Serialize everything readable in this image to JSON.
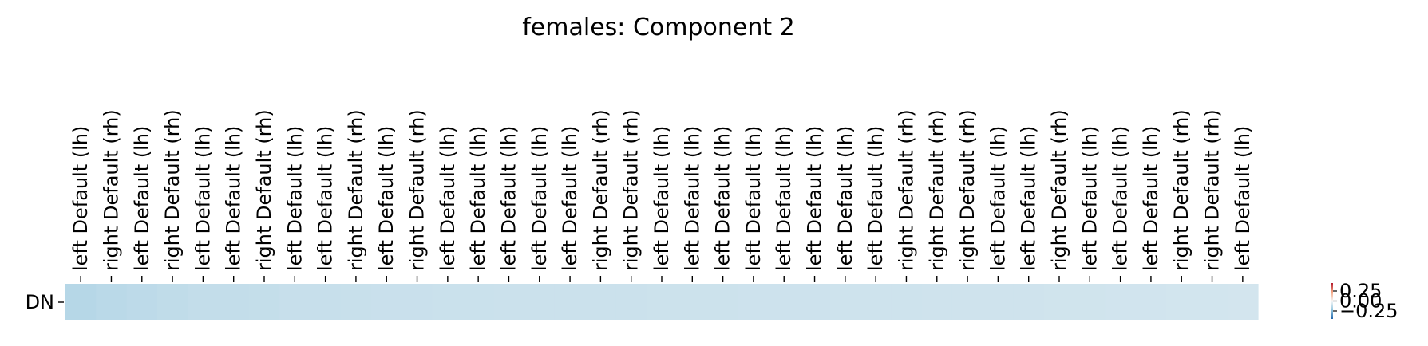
{
  "chart_data": {
    "type": "heatmap",
    "title": "females: Component 2",
    "rows": [
      "DN"
    ],
    "columns": [
      "left Default (lh)",
      "right Default (rh)",
      "left Default (lh)",
      "right Default (rh)",
      "left Default (lh)",
      "left Default (lh)",
      "right Default (rh)",
      "left Default (lh)",
      "left Default (lh)",
      "right Default (rh)",
      "left Default (lh)",
      "right Default (rh)",
      "left Default (lh)",
      "left Default (lh)",
      "left Default (lh)",
      "left Default (lh)",
      "left Default (lh)",
      "right Default (rh)",
      "right Default (rh)",
      "left Default (lh)",
      "left Default (lh)",
      "left Default (lh)",
      "left Default (lh)",
      "left Default (lh)",
      "left Default (lh)",
      "left Default (lh)",
      "left Default (lh)",
      "right Default (rh)",
      "right Default (rh)",
      "right Default (rh)",
      "left Default (lh)",
      "left Default (lh)",
      "right Default (rh)",
      "left Default (lh)",
      "left Default (lh)",
      "left Default (lh)",
      "right Default (rh)",
      "right Default (rh)",
      "left Default (lh)"
    ],
    "values": [
      [
        -0.08,
        -0.076,
        -0.072,
        -0.068,
        -0.064,
        -0.064,
        -0.063,
        -0.06,
        -0.059,
        -0.058,
        -0.057,
        -0.057,
        -0.056,
        -0.056,
        -0.055,
        -0.055,
        -0.054,
        -0.054,
        -0.054,
        -0.053,
        -0.053,
        -0.053,
        -0.052,
        -0.052,
        -0.052,
        -0.051,
        -0.051,
        -0.051,
        -0.05,
        -0.05,
        -0.049,
        -0.049,
        -0.048,
        -0.048,
        -0.047,
        -0.047,
        -0.046,
        -0.046,
        -0.045
      ]
    ],
    "colorbar": {
      "range": [
        -0.25,
        0.25
      ],
      "ticks": [
        "0.25",
        "0.00",
        "−0.25"
      ],
      "colormap": "RdBu_r"
    }
  }
}
